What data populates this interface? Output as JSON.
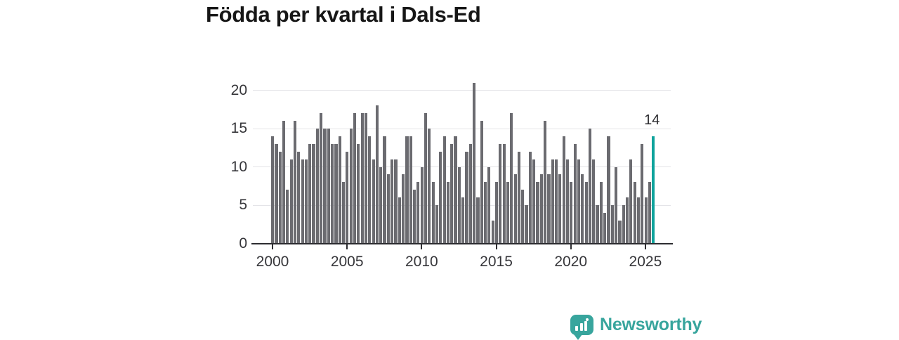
{
  "title": "Födda per kvartal i Dals-Ed",
  "annotation": {
    "label": "14"
  },
  "logo": {
    "text": "Newsworthy"
  },
  "colors": {
    "bar": "#6b6b70",
    "accent": "#0fa39c",
    "grid": "#e4e4e8",
    "axis": "#2d2d31",
    "tick_text": "#36363a",
    "title_text": "#161616",
    "logo": "#38a59d"
  },
  "chart_data": {
    "type": "bar",
    "title": "Födda per kvartal i Dals-Ed",
    "xlabel": "",
    "ylabel": "",
    "ylim": [
      0,
      21
    ],
    "grid": "horizontal",
    "legend": "none",
    "y_ticks": [
      0,
      5,
      10,
      15,
      20
    ],
    "x_tick_years": [
      2000,
      2005,
      2010,
      2015,
      2020,
      2025
    ],
    "highlight": {
      "index": 102,
      "label": "14"
    },
    "categories": [
      "2000Q1",
      "2000Q2",
      "2000Q3",
      "2000Q4",
      "2001Q1",
      "2001Q2",
      "2001Q3",
      "2001Q4",
      "2002Q1",
      "2002Q2",
      "2002Q3",
      "2002Q4",
      "2003Q1",
      "2003Q2",
      "2003Q3",
      "2003Q4",
      "2004Q1",
      "2004Q2",
      "2004Q3",
      "2004Q4",
      "2005Q1",
      "2005Q2",
      "2005Q3",
      "2005Q4",
      "2006Q1",
      "2006Q2",
      "2006Q3",
      "2006Q4",
      "2007Q1",
      "2007Q2",
      "2007Q3",
      "2007Q4",
      "2008Q1",
      "2008Q2",
      "2008Q3",
      "2008Q4",
      "2009Q1",
      "2009Q2",
      "2009Q3",
      "2009Q4",
      "2010Q1",
      "2010Q2",
      "2010Q3",
      "2010Q4",
      "2011Q1",
      "2011Q2",
      "2011Q3",
      "2011Q4",
      "2012Q1",
      "2012Q2",
      "2012Q3",
      "2012Q4",
      "2013Q1",
      "2013Q2",
      "2013Q3",
      "2013Q4",
      "2014Q1",
      "2014Q2",
      "2014Q3",
      "2014Q4",
      "2015Q1",
      "2015Q2",
      "2015Q3",
      "2015Q4",
      "2016Q1",
      "2016Q2",
      "2016Q3",
      "2016Q4",
      "2017Q1",
      "2017Q2",
      "2017Q3",
      "2017Q4",
      "2018Q1",
      "2018Q2",
      "2018Q3",
      "2018Q4",
      "2019Q1",
      "2019Q2",
      "2019Q3",
      "2019Q4",
      "2020Q1",
      "2020Q2",
      "2020Q3",
      "2020Q4",
      "2021Q1",
      "2021Q2",
      "2021Q3",
      "2021Q4",
      "2022Q1",
      "2022Q2",
      "2022Q3",
      "2022Q4",
      "2023Q1",
      "2023Q2",
      "2023Q3",
      "2023Q4",
      "2024Q1",
      "2024Q2",
      "2024Q3",
      "2024Q4",
      "2025Q1",
      "2025Q2",
      "2025Q3"
    ],
    "values": [
      14,
      13,
      12,
      16,
      7,
      11,
      16,
      12,
      11,
      11,
      13,
      13,
      15,
      17,
      15,
      15,
      13,
      13,
      14,
      8,
      12,
      15,
      17,
      13,
      17,
      17,
      14,
      11,
      18,
      10,
      14,
      9,
      11,
      11,
      6,
      9,
      14,
      14,
      7,
      8,
      10,
      17,
      15,
      8,
      5,
      12,
      14,
      8,
      13,
      14,
      10,
      6,
      12,
      13,
      21,
      6,
      16,
      8,
      10,
      3,
      8,
      13,
      13,
      8,
      17,
      9,
      12,
      7,
      5,
      12,
      11,
      8,
      9,
      16,
      9,
      11,
      11,
      9,
      14,
      11,
      8,
      13,
      11,
      9,
      8,
      15,
      11,
      5,
      8,
      4,
      14,
      5,
      10,
      3,
      5,
      6,
      11,
      8,
      6,
      13,
      6,
      8,
      14
    ]
  }
}
